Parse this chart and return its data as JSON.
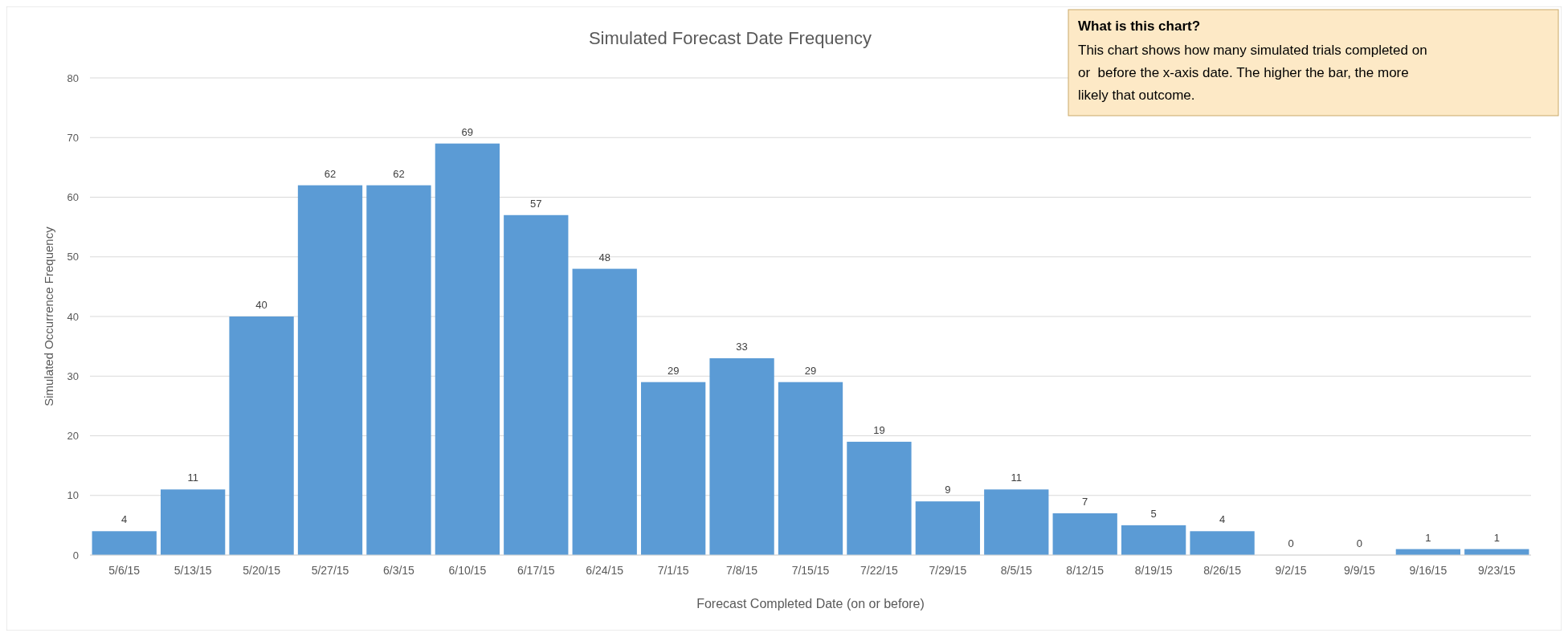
{
  "chart_data": {
    "type": "bar",
    "title": "Simulated Forecast Date Frequency",
    "xlabel": "Forecast Completed Date (on or before)",
    "ylabel": "Simulated Occurrence Frequency",
    "categories": [
      "5/6/15",
      "5/13/15",
      "5/20/15",
      "5/27/15",
      "6/3/15",
      "6/10/15",
      "6/17/15",
      "6/24/15",
      "7/1/15",
      "7/8/15",
      "7/15/15",
      "7/22/15",
      "7/29/15",
      "8/5/15",
      "8/12/15",
      "8/19/15",
      "8/26/15",
      "9/2/15",
      "9/9/15",
      "9/16/15",
      "9/23/15"
    ],
    "values": [
      4,
      11,
      40,
      62,
      62,
      69,
      57,
      48,
      29,
      33,
      29,
      19,
      9,
      11,
      7,
      5,
      4,
      0,
      0,
      1,
      1
    ],
    "color": "#5b9bd5",
    "ylim": [
      0,
      80
    ],
    "yticks": [
      0,
      10,
      20,
      30,
      40,
      50,
      60,
      70,
      80
    ],
    "grid": "y",
    "data_labels": true,
    "annotations": [
      "What is this chart?",
      "This chart shows how many simulated trials completed on or  before the x-axis date. The higher the bar, the more likely that outcome."
    ]
  }
}
